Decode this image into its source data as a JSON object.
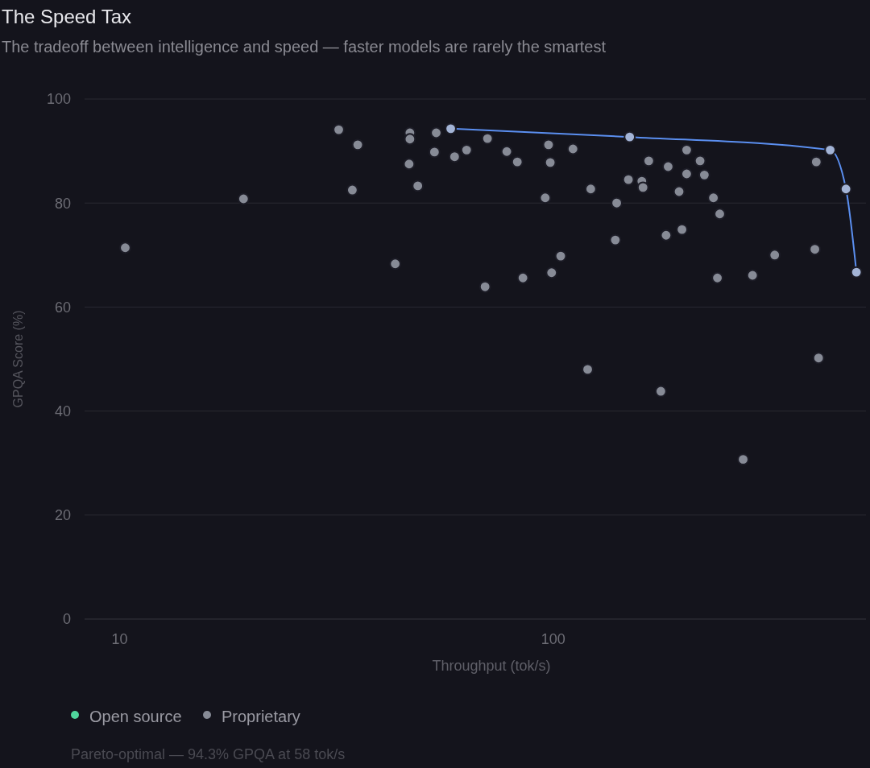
{
  "chart_data": {
    "type": "scatter",
    "title": "The Speed Tax",
    "subtitle": "The tradeoff between intelligence and speed — faster models are rarely the smartest",
    "xlabel": "Throughput (tok/s)",
    "ylabel": "GPQA Score (%)",
    "log": "x",
    "xlim": [
      8.3,
      526
    ],
    "xticks": [
      10,
      100
    ],
    "ylim": [
      0,
      100
    ],
    "yticks": [
      0,
      20,
      40,
      60,
      80,
      100
    ],
    "grid": "y",
    "legend": "bottom left",
    "annotations": [
      "Pareto-optimal — 94.3% GPQA at 58 tok/s"
    ],
    "series": [
      {
        "name": "Open source",
        "color": "#4fd69c"
      },
      {
        "name": "Proprietary",
        "color": "#878b96",
        "marker": "circle",
        "x": [
          10.3,
          19.3,
          32,
          34.4,
          35.4,
          43.2,
          46.7,
          46.7,
          46.5,
          48.7,
          53.2,
          53.7,
          59.2,
          63.1,
          69.6,
          70.5,
          78.1,
          82.6,
          85.1,
          95.8,
          97.5,
          98.4,
          99.1,
          104,
          111,
          120,
          122,
          139,
          140,
          149,
          160,
          161,
          166,
          177,
          182,
          184,
          195,
          198,
          203,
          203,
          218,
          223,
          234,
          239,
          242,
          274,
          288,
          324,
          401,
          404,
          409
        ],
        "values": [
          71.4,
          80.8,
          94.1,
          82.5,
          91.2,
          68.3,
          93.5,
          92.3,
          87.5,
          83.3,
          89.8,
          93.5,
          88.9,
          90.2,
          63.9,
          92.4,
          89.9,
          87.9,
          65.6,
          81.0,
          91.2,
          87.8,
          66.6,
          69.8,
          90.4,
          48.0,
          82.7,
          72.9,
          80.0,
          84.5,
          84.2,
          83.0,
          88.1,
          43.8,
          73.8,
          87.0,
          82.2,
          74.9,
          90.2,
          85.6,
          88.1,
          85.4,
          81.0,
          65.6,
          77.9,
          30.7,
          66.1,
          70.0,
          71.1,
          87.9,
          50.2
        ]
      },
      {
        "type": "line",
        "color": "#5b8ff0",
        "marker": "none",
        "x": [
          58,
          150,
          435,
          473,
          500
        ],
        "values": [
          94.3,
          92.7,
          90.2,
          82.7,
          66.7
        ]
      },
      {
        "color": "#a3b4d6",
        "marker": "circle",
        "x": [
          58,
          150,
          435,
          473,
          500
        ],
        "values": [
          94.3,
          92.7,
          90.2,
          82.7,
          66.7
        ]
      }
    ]
  }
}
